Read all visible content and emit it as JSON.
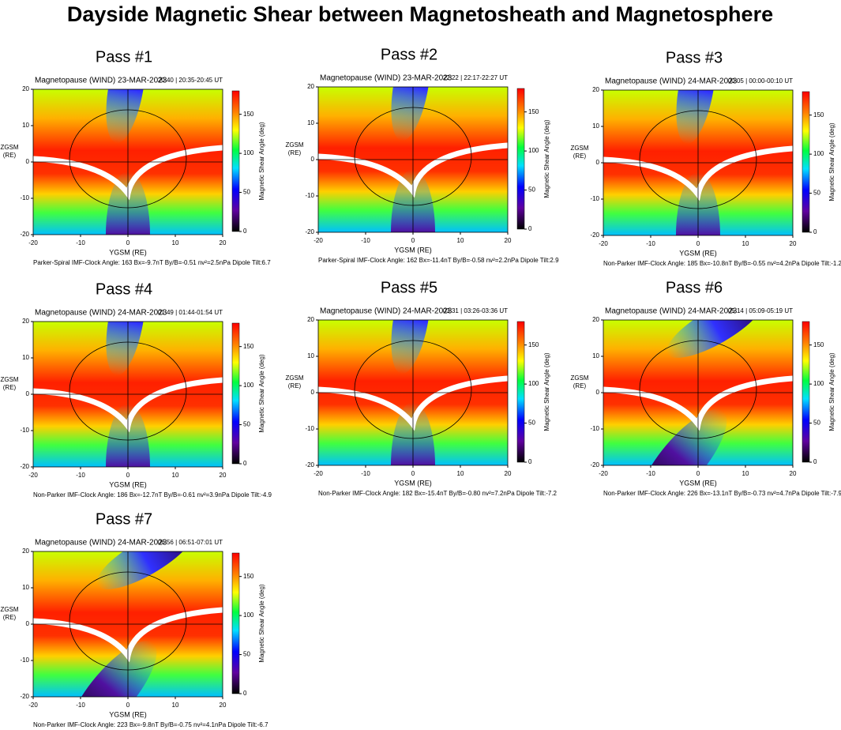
{
  "title": "Dayside Magnetic Shear between Magnetosheath and Magnetosphere",
  "axis": {
    "x_label": "YGSM (RE)",
    "y_label": "ZGSM",
    "y_label_unit": "(RE)",
    "ticks": [
      -20,
      -10,
      0,
      10,
      20
    ],
    "colorbar_label": "Magnetic Shear Angle (deg)",
    "colorbar_ticks": [
      0,
      50,
      100,
      150
    ],
    "colorbar_range": [
      0,
      180
    ]
  },
  "panels": [
    {
      "label": "Pass #1",
      "header": "Magnetopause (WIND) 23-MAR-2023",
      "time": "20:40 | 20:35-20:45 UT",
      "footer": "Parker-Spiral IMF-Clock Angle: 163  Bx=-9.7nT  By/B=-0.51  nv²=2.5nPa  Dipole Tilt:6.7"
    },
    {
      "label": "Pass #2",
      "header": "Magnetopause (WIND) 23-MAR-2023",
      "time": "22:22 | 22:17-22:27 UT",
      "footer": "Parker-Spiral IMF-Clock Angle: 162  Bx=-11.4nT  By/B=-0.58  nv²=2.2nPa  Dipole Tilt:2.9"
    },
    {
      "label": "Pass #3",
      "header": "Magnetopause (WIND) 24-MAR-2023",
      "time": "00:05 | 00:00-00:10 UT",
      "footer": "Non-Parker IMF-Clock Angle: 185  Bx=-10.8nT  By/B=-0.55  nv²=4.2nPa  Dipole Tilt:-1.2"
    },
    {
      "label": "Pass #4",
      "header": "Magnetopause (WIND) 24-MAR-2023",
      "time": "01:49 | 01:44-01:54 UT",
      "footer": "Non-Parker IMF-Clock Angle: 186  Bx=-12.7nT  By/B=-0.61  nv²=3.9nPa  Dipole Tilt:-4.9"
    },
    {
      "label": "Pass #5",
      "header": "Magnetopause (WIND) 24-MAR-2023",
      "time": "03:31 | 03:26-03:36 UT",
      "footer": "Non-Parker IMF-Clock Angle: 182  Bx=-15.4nT  By/B=-0.80  nv²=7.2nPa  Dipole Tilt:-7.2"
    },
    {
      "label": "Pass #6",
      "header": "Magnetopause (WIND) 24-MAR-2023",
      "time": "05:14 | 05:09-05:19 UT",
      "footer": "Non-Parker IMF-Clock Angle: 226  Bx=-13.1nT  By/B=-0.73  nv²=4.7nPa  Dipole Tilt:-7.9"
    },
    {
      "label": "Pass #7",
      "header": "Magnetopause (WIND) 24-MAR-2023",
      "time": "06:56 | 06:51-07:01 UT",
      "footer": "Non-Parker IMF-Clock Angle: 223  Bx=-9.8nT  By/B=-0.75  nv²=4.1nPa  Dipole Tilt:-6.7"
    }
  ]
}
